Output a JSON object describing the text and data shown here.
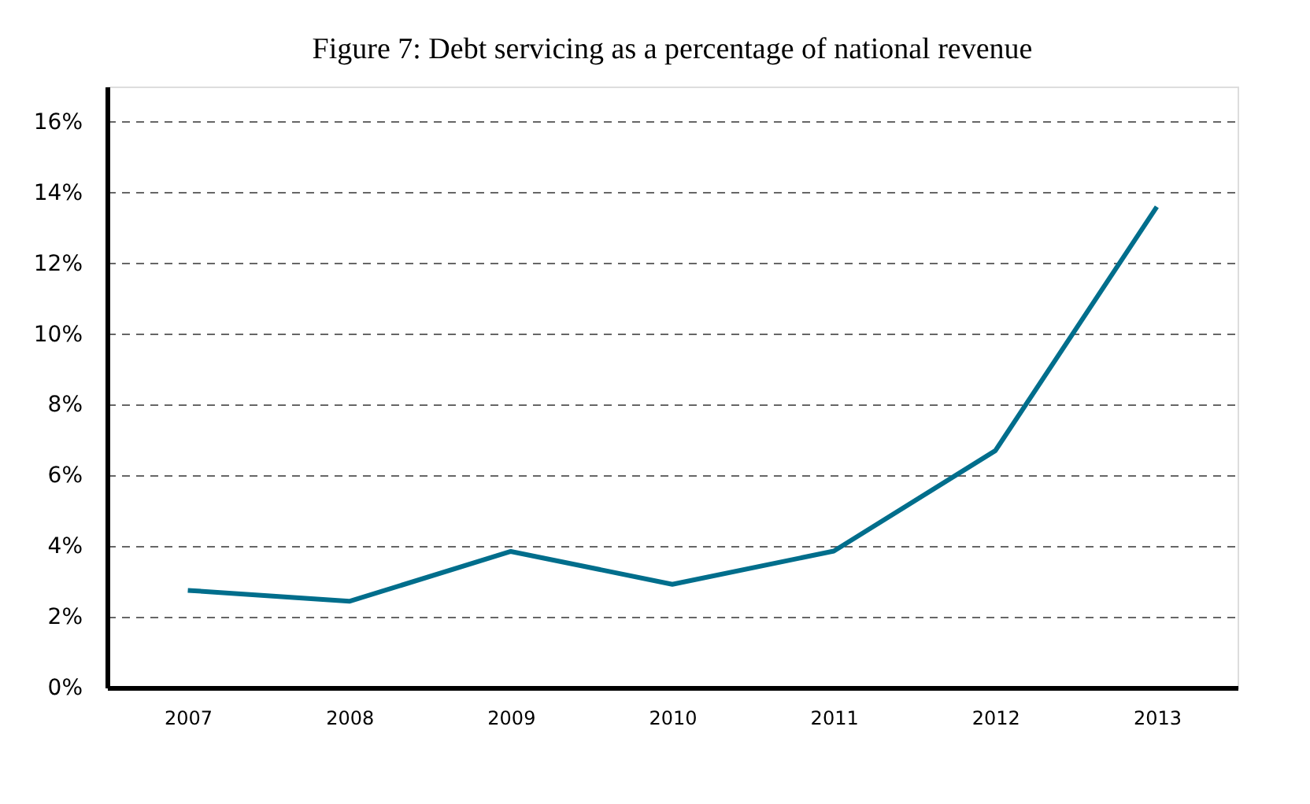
{
  "chart_data": {
    "type": "line",
    "title": "Figure 7: Debt servicing as a percentage of national revenue",
    "categories": [
      "2007",
      "2008",
      "2009",
      "2010",
      "2011",
      "2012",
      "2013"
    ],
    "series": [
      {
        "color": "#006e8c",
        "values": [
          2.75,
          2.44,
          3.85,
          2.92,
          3.86,
          6.7,
          13.6
        ]
      }
    ],
    "ylim": [
      0,
      17
    ],
    "yticks": [
      {
        "value": 0,
        "label": "0%"
      },
      {
        "value": 2,
        "label": "2%"
      },
      {
        "value": 4,
        "label": "4%"
      },
      {
        "value": 6,
        "label": "6%"
      },
      {
        "value": 8,
        "label": "8%"
      },
      {
        "value": 10,
        "label": "10%"
      },
      {
        "value": 12,
        "label": "12%"
      },
      {
        "value": 14,
        "label": "14%"
      },
      {
        "value": 16,
        "label": "16%"
      }
    ],
    "grid": "y",
    "marker": "none",
    "line_style": "solid"
  }
}
